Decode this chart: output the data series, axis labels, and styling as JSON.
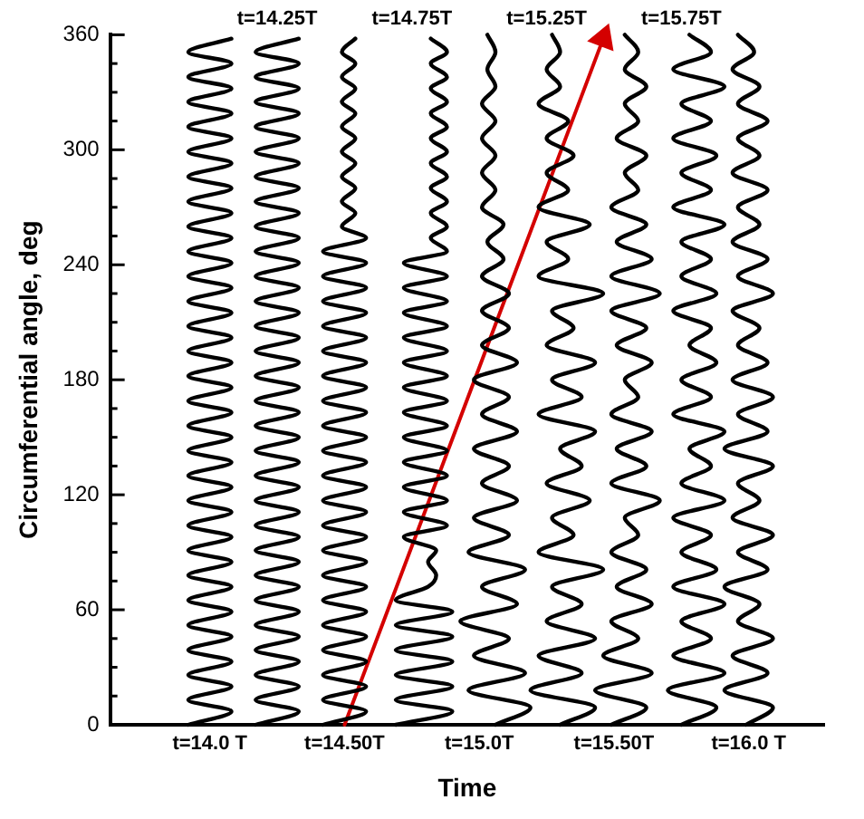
{
  "chart_data": {
    "type": "line",
    "xlabel": "Time",
    "ylabel": "Circumferential angle, deg",
    "xlim": [
      13.63,
      16.28
    ],
    "ylim": [
      0,
      360
    ],
    "xticks": [
      {
        "value": 14.0,
        "label": "t=14.0 T"
      },
      {
        "value": 14.5,
        "label": "t=14.50T"
      },
      {
        "value": 15.0,
        "label": "t=15.0T"
      },
      {
        "value": 15.5,
        "label": "t=15.50T"
      },
      {
        "value": 16.0,
        "label": "t=16.0 T"
      }
    ],
    "x2lim": [
      13.63,
      16.28
    ],
    "x2ticks": [
      {
        "value": 14.25,
        "label": "t=14.25T"
      },
      {
        "value": 14.75,
        "label": "t=14.75T"
      },
      {
        "value": 15.25,
        "label": "t=15.25T"
      },
      {
        "value": 15.75,
        "label": "t=15.75T"
      }
    ],
    "yticks": [
      0,
      {
        "value": 15,
        "label": null
      },
      {
        "value": 30,
        "label": null
      },
      {
        "value": 45,
        "label": null
      },
      60,
      {
        "value": 75,
        "label": null
      },
      {
        "value": 90,
        "label": null
      },
      {
        "value": 105,
        "label": null
      },
      120,
      {
        "value": 135,
        "label": null
      },
      {
        "value": 150,
        "label": null
      },
      {
        "value": 165,
        "label": null
      },
      180,
      {
        "value": 195,
        "label": null
      },
      {
        "value": 210,
        "label": null
      },
      {
        "value": 225,
        "label": null
      },
      240,
      {
        "value": 255,
        "label": null
      },
      {
        "value": 270,
        "label": null
      },
      {
        "value": 285,
        "label": null
      },
      300,
      {
        "value": 315,
        "label": null
      },
      {
        "value": 330,
        "label": null
      },
      {
        "value": 345,
        "label": null
      },
      360
    ],
    "grid": false,
    "legend": false,
    "marker": "none",
    "series": [
      {
        "color": "#000000",
        "x": [
          13.92,
          14.08,
          13.92,
          14.08,
          13.92,
          14.08,
          13.92,
          14.08,
          13.92,
          14.08,
          13.92,
          14.08,
          13.92,
          14.08,
          13.92,
          14.08,
          13.92,
          14.08,
          13.92,
          14.08,
          13.92,
          14.08,
          13.92,
          14.08,
          13.92,
          14.08,
          13.92,
          14.08,
          13.92,
          14.08,
          13.92,
          14.08,
          13.92,
          14.08,
          13.92,
          14.08,
          13.92,
          14.08,
          13.92,
          14.08,
          13.92,
          14.08,
          13.92,
          14.08,
          13.92,
          14.08,
          13.92,
          14.08,
          13.92,
          14.08,
          13.92,
          14.08,
          13.92,
          14.08,
          13.92,
          14.08
        ],
        "values": [
          0,
          7,
          13,
          20,
          26,
          33,
          39,
          46,
          52,
          59,
          65,
          72,
          78,
          85,
          91,
          98,
          104,
          111,
          117,
          124,
          130,
          137,
          143,
          150,
          156,
          163,
          169,
          176,
          182,
          189,
          195,
          202,
          208,
          215,
          221,
          228,
          234,
          241,
          247,
          254,
          260,
          267,
          273,
          280,
          286,
          293,
          299,
          306,
          312,
          319,
          325,
          332,
          338,
          345,
          351,
          358
        ]
      },
      {
        "color": "#000000",
        "x": [
          14.17,
          14.33,
          14.17,
          14.33,
          14.17,
          14.33,
          14.17,
          14.33,
          14.17,
          14.33,
          14.17,
          14.33,
          14.17,
          14.33,
          14.17,
          14.33,
          14.17,
          14.33,
          14.17,
          14.33,
          14.17,
          14.33,
          14.17,
          14.33,
          14.17,
          14.33,
          14.17,
          14.33,
          14.17,
          14.33,
          14.17,
          14.33,
          14.17,
          14.33,
          14.17,
          14.33,
          14.17,
          14.33,
          14.17,
          14.33,
          14.17,
          14.33,
          14.17,
          14.33,
          14.17,
          14.33,
          14.17,
          14.33,
          14.17,
          14.33,
          14.17,
          14.33,
          14.17,
          14.33,
          14.17,
          14.33
        ],
        "values": [
          0,
          7,
          13,
          20,
          26,
          33,
          39,
          46,
          52,
          59,
          65,
          72,
          78,
          85,
          91,
          98,
          104,
          111,
          117,
          124,
          130,
          137,
          143,
          150,
          156,
          163,
          169,
          176,
          182,
          189,
          195,
          202,
          208,
          215,
          221,
          228,
          234,
          241,
          247,
          254,
          260,
          267,
          273,
          280,
          286,
          293,
          299,
          306,
          312,
          319,
          325,
          332,
          338,
          345,
          351,
          358
        ]
      },
      {
        "color": "#000000",
        "x": [
          14.42,
          14.58,
          14.42,
          14.58,
          14.42,
          14.58,
          14.42,
          14.58,
          14.42,
          14.58,
          14.42,
          14.58,
          14.42,
          14.58,
          14.42,
          14.58,
          14.42,
          14.58,
          14.42,
          14.58,
          14.42,
          14.58,
          14.42,
          14.58,
          14.42,
          14.58,
          14.42,
          14.58,
          14.42,
          14.58,
          14.42,
          14.58,
          14.42,
          14.58,
          14.42,
          14.58,
          14.42,
          14.58,
          14.42,
          14.58,
          14.49,
          14.54,
          14.49,
          14.54,
          14.49,
          14.54,
          14.49,
          14.54,
          14.49,
          14.54,
          14.49,
          14.54,
          14.49,
          14.54,
          14.49,
          14.54
        ],
        "values": [
          0,
          7,
          13,
          20,
          26,
          33,
          39,
          46,
          52,
          59,
          65,
          72,
          78,
          85,
          91,
          98,
          104,
          111,
          117,
          124,
          130,
          137,
          143,
          150,
          156,
          163,
          169,
          176,
          182,
          189,
          195,
          202,
          208,
          215,
          221,
          228,
          234,
          241,
          247,
          254,
          260,
          267,
          273,
          280,
          286,
          293,
          299,
          306,
          312,
          319,
          325,
          332,
          338,
          345,
          351,
          358
        ]
      },
      {
        "color": "#000000",
        "x": [
          14.69,
          14.9,
          14.69,
          14.9,
          14.69,
          14.9,
          14.69,
          14.9,
          14.69,
          14.9,
          14.69,
          14.81,
          14.84,
          14.81,
          14.84,
          14.72,
          14.88,
          14.72,
          14.88,
          14.72,
          14.88,
          14.72,
          14.88,
          14.72,
          14.88,
          14.72,
          14.88,
          14.72,
          14.88,
          14.72,
          14.88,
          14.72,
          14.88,
          14.72,
          14.88,
          14.72,
          14.88,
          14.72,
          14.88,
          14.82,
          14.88,
          14.82,
          14.88,
          14.82,
          14.88,
          14.82,
          14.88,
          14.82,
          14.88,
          14.82,
          14.88,
          14.82,
          14.88,
          14.82,
          14.88,
          14.82
        ],
        "values": [
          0,
          7,
          13,
          20,
          26,
          33,
          39,
          46,
          52,
          59,
          65,
          72,
          78,
          85,
          91,
          98,
          104,
          111,
          117,
          124,
          130,
          137,
          143,
          150,
          156,
          163,
          169,
          176,
          182,
          189,
          195,
          202,
          208,
          215,
          221,
          228,
          234,
          241,
          247,
          254,
          260,
          267,
          273,
          280,
          286,
          293,
          299,
          306,
          312,
          319,
          325,
          332,
          338,
          345,
          351,
          358
        ]
      },
      {
        "color": "#000000",
        "x": [
          15.06,
          15.19,
          14.96,
          15.17,
          14.98,
          15.11,
          14.93,
          15.14,
          15.01,
          15.17,
          14.96,
          15.11,
          14.98,
          15.14,
          15.01,
          15.11,
          14.98,
          15.14,
          15.01,
          15.11,
          14.98,
          15.14,
          15.01,
          15.11,
          15.01,
          15.11,
          15.01,
          15.09,
          15.03,
          15.09,
          15.01,
          15.06,
          15.01,
          15.06,
          15.01,
          15.06,
          15.01,
          15.06,
          15.03,
          15.06,
          15.03
        ],
        "values": [
          0,
          9,
          18,
          27,
          36,
          45,
          54,
          63,
          72,
          81,
          90,
          99,
          108,
          117,
          126,
          135,
          144,
          153,
          162,
          171,
          180,
          189,
          198,
          207,
          216,
          225,
          234,
          243,
          252,
          261,
          270,
          279,
          288,
          297,
          306,
          315,
          324,
          333,
          342,
          351,
          360
        ]
      },
      {
        "color": "#000000",
        "x": [
          15.3,
          15.43,
          15.19,
          15.38,
          15.22,
          15.43,
          15.25,
          15.38,
          15.27,
          15.46,
          15.22,
          15.35,
          15.27,
          15.41,
          15.25,
          15.38,
          15.3,
          15.43,
          15.22,
          15.38,
          15.27,
          15.43,
          15.25,
          15.35,
          15.27,
          15.46,
          15.22,
          15.33,
          15.25,
          15.41,
          15.22,
          15.33,
          15.25,
          15.35,
          15.25,
          15.33,
          15.22,
          15.3,
          15.25,
          15.3,
          15.27
        ],
        "values": [
          0,
          9,
          18,
          27,
          36,
          45,
          54,
          63,
          72,
          81,
          90,
          99,
          108,
          117,
          126,
          135,
          144,
          153,
          162,
          171,
          180,
          189,
          198,
          207,
          216,
          225,
          234,
          243,
          252,
          261,
          270,
          279,
          288,
          297,
          306,
          315,
          324,
          333,
          342,
          351,
          360
        ]
      },
      {
        "color": "#000000",
        "x": [
          15.49,
          15.62,
          15.43,
          15.64,
          15.46,
          15.59,
          15.49,
          15.64,
          15.51,
          15.62,
          15.49,
          15.59,
          15.54,
          15.67,
          15.49,
          15.62,
          15.51,
          15.64,
          15.49,
          15.59,
          15.54,
          15.64,
          15.51,
          15.62,
          15.49,
          15.67,
          15.49,
          15.64,
          15.51,
          15.62,
          15.49,
          15.59,
          15.54,
          15.62,
          15.51,
          15.59,
          15.54,
          15.62,
          15.54,
          15.59,
          15.54
        ],
        "values": [
          0,
          9,
          18,
          27,
          36,
          45,
          54,
          63,
          72,
          81,
          90,
          99,
          108,
          117,
          126,
          135,
          144,
          153,
          162,
          171,
          180,
          189,
          198,
          207,
          216,
          225,
          234,
          243,
          252,
          261,
          270,
          279,
          288,
          297,
          306,
          315,
          324,
          333,
          342,
          351,
          360
        ]
      },
      {
        "color": "#000000",
        "x": [
          15.75,
          15.88,
          15.7,
          15.91,
          15.72,
          15.86,
          15.75,
          15.91,
          15.72,
          15.88,
          15.75,
          15.86,
          15.72,
          15.91,
          15.75,
          15.86,
          15.78,
          15.91,
          15.72,
          15.86,
          15.75,
          15.88,
          15.78,
          15.86,
          15.72,
          15.88,
          15.75,
          15.86,
          15.75,
          15.91,
          15.72,
          15.86,
          15.75,
          15.88,
          15.72,
          15.86,
          15.75,
          15.91,
          15.72,
          15.86,
          15.78
        ],
        "values": [
          0,
          9,
          18,
          27,
          36,
          45,
          54,
          63,
          72,
          81,
          90,
          99,
          108,
          117,
          126,
          135,
          144,
          153,
          162,
          171,
          180,
          189,
          198,
          207,
          216,
          225,
          234,
          243,
          252,
          261,
          270,
          279,
          288,
          297,
          306,
          315,
          324,
          333,
          342,
          351,
          360
        ]
      },
      {
        "color": "#000000",
        "x": [
          15.99,
          16.09,
          15.91,
          16.07,
          15.94,
          16.09,
          15.96,
          16.04,
          15.91,
          16.07,
          15.96,
          16.09,
          15.94,
          16.04,
          15.96,
          16.09,
          15.91,
          16.07,
          15.96,
          16.09,
          15.94,
          16.07,
          15.96,
          16.04,
          15.94,
          16.09,
          15.96,
          16.07,
          15.94,
          16.04,
          15.96,
          16.07,
          15.94,
          16.04,
          15.96,
          16.07,
          15.96,
          16.04,
          15.94,
          16.02,
          15.96
        ],
        "values": [
          0,
          9,
          18,
          27,
          36,
          45,
          54,
          63,
          72,
          81,
          90,
          99,
          108,
          117,
          126,
          135,
          144,
          153,
          162,
          171,
          180,
          189,
          198,
          207,
          216,
          225,
          234,
          243,
          252,
          261,
          270,
          279,
          288,
          297,
          306,
          315,
          324,
          333,
          342,
          351,
          360
        ]
      },
      {
        "color": "#d40000",
        "marker": "triangle",
        "x": [
          14.5,
          15.46
        ],
        "values": [
          0,
          358
        ]
      }
    ]
  }
}
